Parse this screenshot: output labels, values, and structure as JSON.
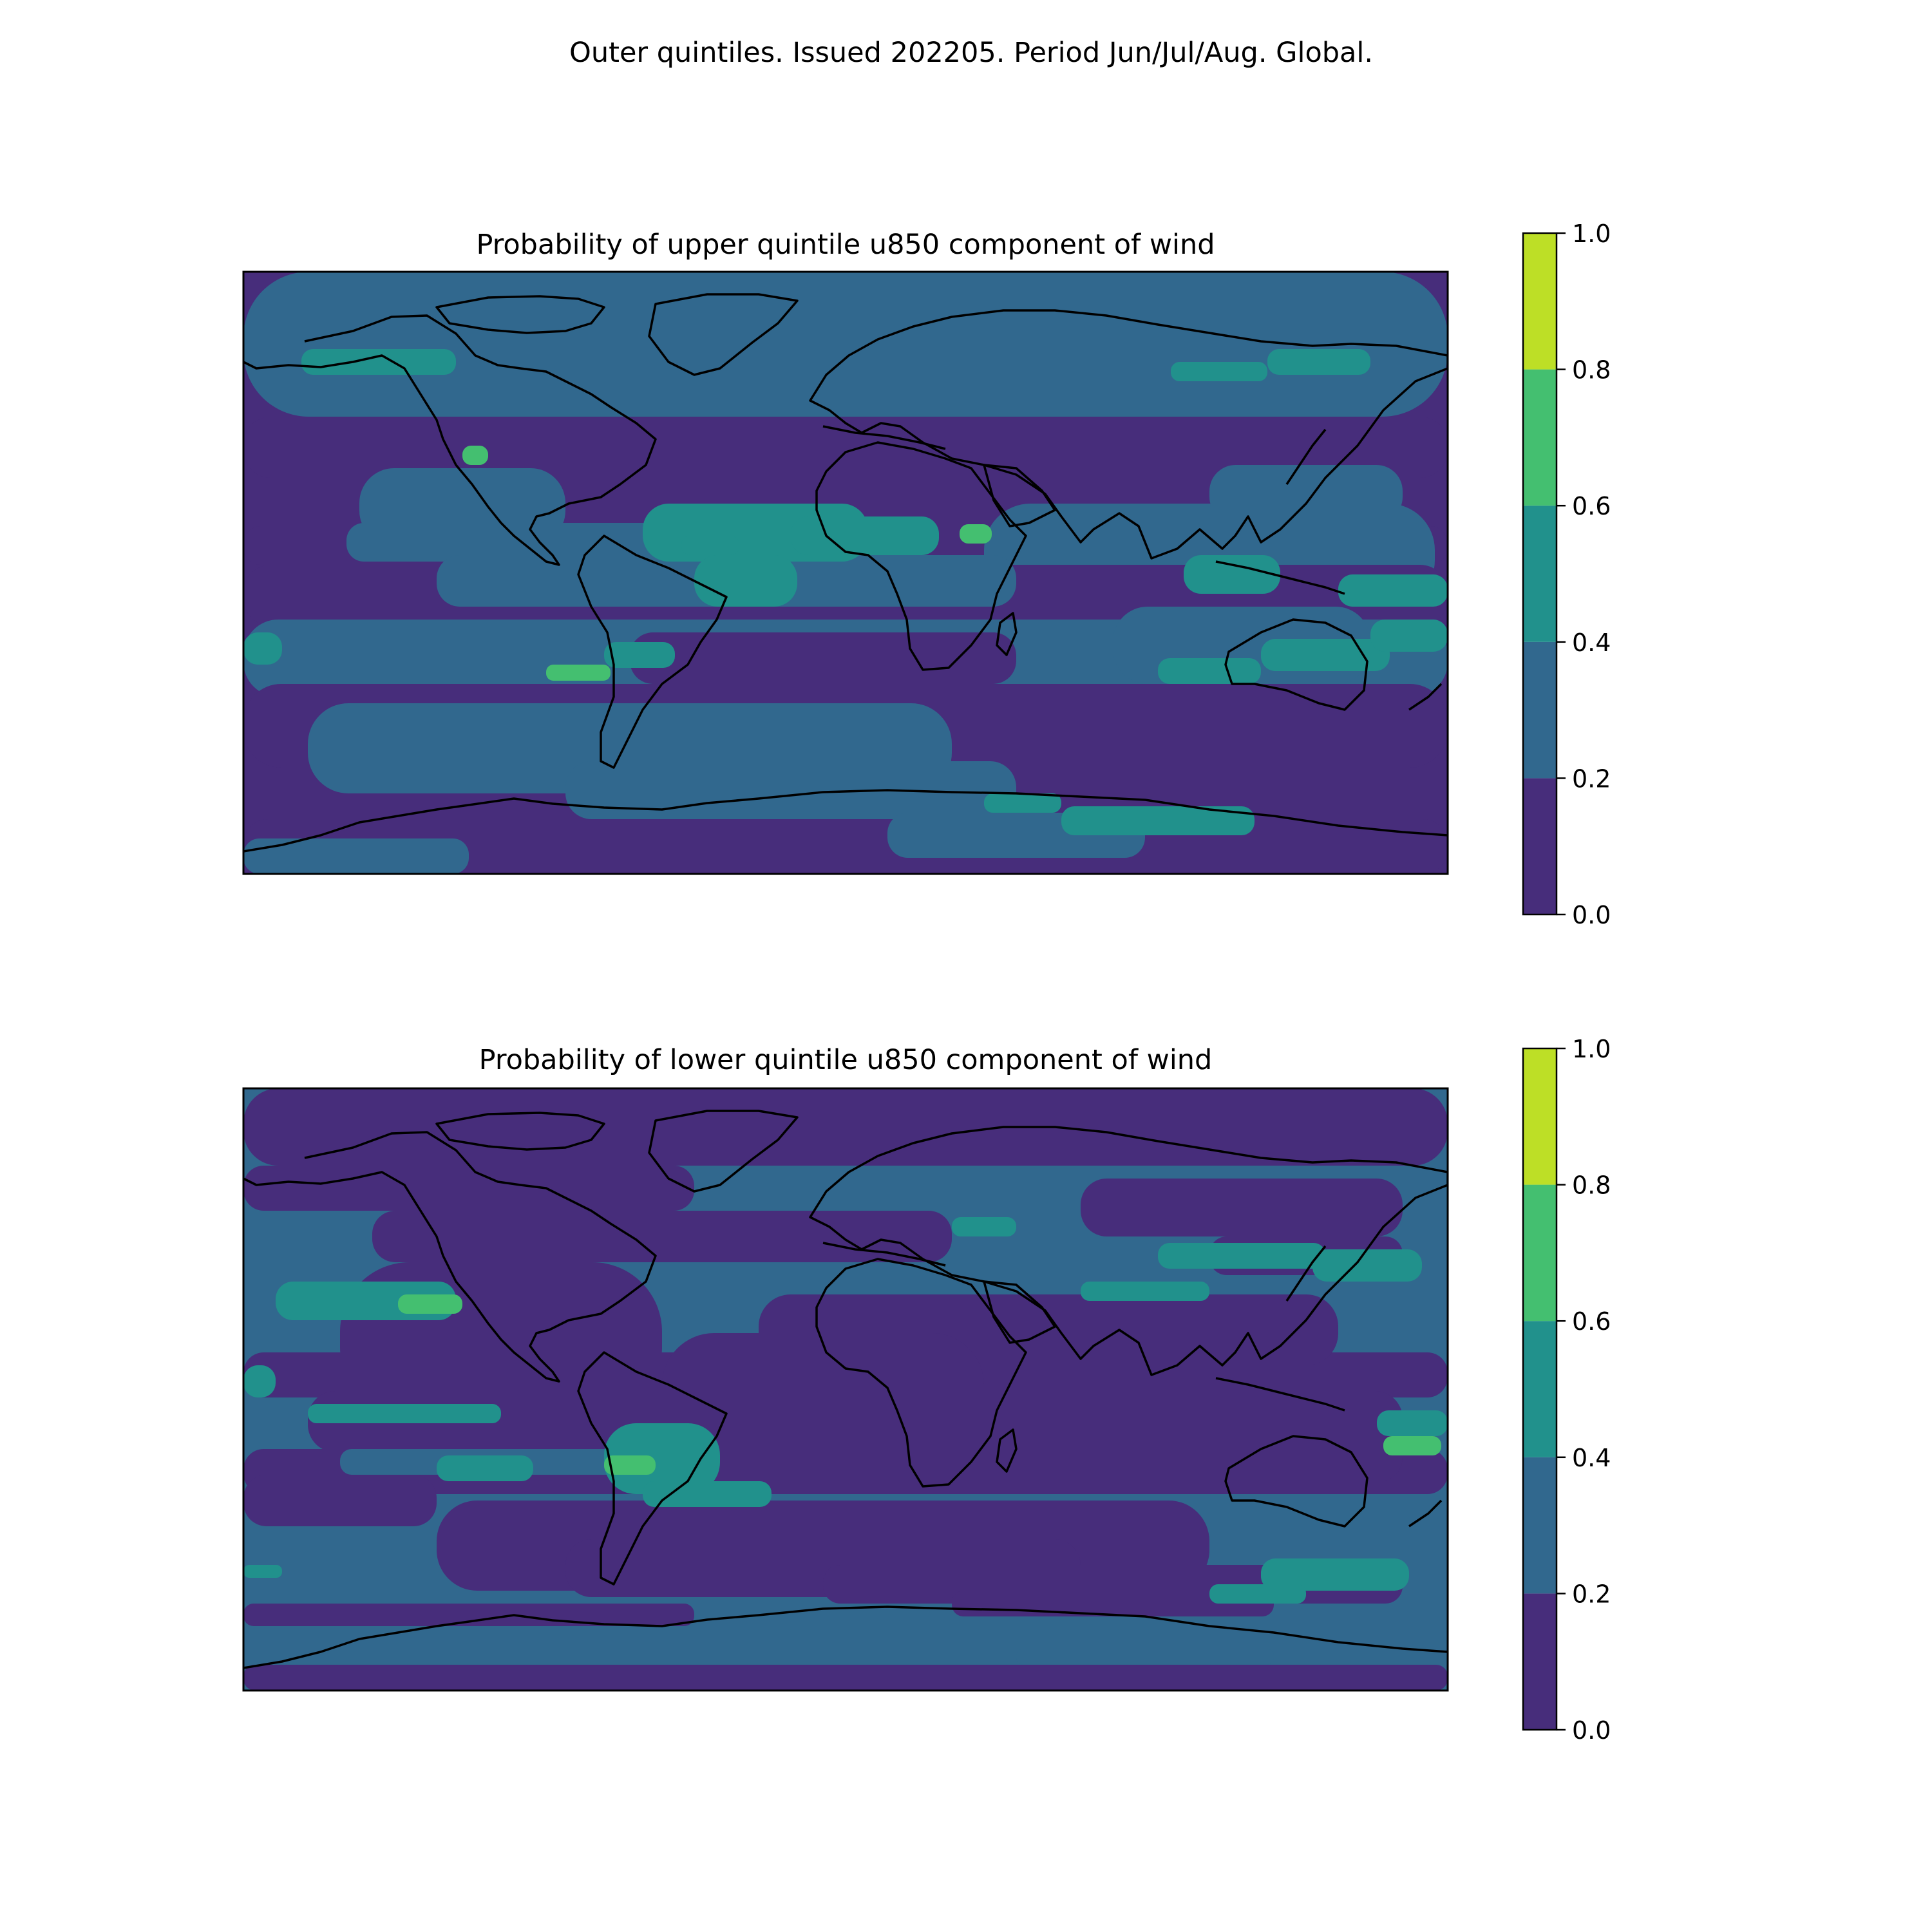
{
  "suptitle": "Outer quintiles. Issued 202205. Period Jun/Jul/Aug. Global.",
  "colormap": {
    "name": "viridis",
    "levels": [
      0.0,
      0.2,
      0.4,
      0.6,
      0.8,
      1.0
    ],
    "colors": [
      "#472d7b",
      "#31688e",
      "#21918c",
      "#44bf70",
      "#bddf26"
    ]
  },
  "panels": [
    {
      "id": "upper",
      "title": "Probability of upper quintile u850 component of wind",
      "colorbar_ticks": [
        "0.0",
        "0.2",
        "0.4",
        "0.6",
        "0.8",
        "1.0"
      ],
      "dominant_level": 0
    },
    {
      "id": "lower",
      "title": "Probability of lower quintile u850 component of wind",
      "colorbar_ticks": [
        "0.0",
        "0.2",
        "0.4",
        "0.6",
        "0.8",
        "1.0"
      ],
      "dominant_level": 1
    }
  ],
  "chart_data": [
    {
      "type": "heatmap",
      "projection": "equirectangular",
      "title": "Probability of upper quintile u850 component of wind",
      "colorbar": {
        "range": [
          0.0,
          1.0
        ],
        "bins": [
          [
            0.0,
            0.2
          ],
          [
            0.2,
            0.4
          ],
          [
            0.4,
            0.6
          ],
          [
            0.6,
            0.8
          ],
          [
            0.8,
            1.0
          ]
        ]
      }
    },
    {
      "type": "heatmap",
      "projection": "equirectangular",
      "title": "Probability of lower quintile u850 component of wind",
      "colorbar": {
        "range": [
          0.0,
          1.0
        ],
        "bins": [
          [
            0.0,
            0.2
          ],
          [
            0.2,
            0.4
          ],
          [
            0.4,
            0.6
          ],
          [
            0.6,
            0.8
          ],
          [
            0.8,
            1.0
          ]
        ]
      }
    }
  ]
}
